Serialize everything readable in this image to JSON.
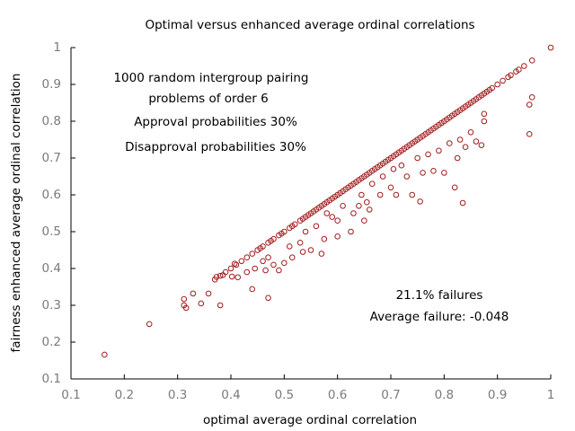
{
  "chart_data": {
    "type": "scatter",
    "title": "Optimal versus enhanced average ordinal correlations",
    "x_label": "optimal average ordinal correlation",
    "y_label": "fairness enhanced average ordinal correlation",
    "annotations": [
      "1000 random intergroup pairing",
      "problems of order 6",
      "Approval probabilities 30%",
      "Disapproval probabilities 30%",
      "21.1% failures",
      "Average failure: -0.048"
    ],
    "xlim": [
      0.1,
      1
    ],
    "ylim": [
      0.1,
      1
    ],
    "xticks": [
      0.1,
      0.2,
      0.3,
      0.4,
      0.5,
      0.6,
      0.7,
      0.8,
      0.9,
      1
    ],
    "yticks": [
      0.1,
      0.2,
      0.3,
      0.4,
      0.5,
      0.6,
      0.7,
      0.8,
      0.9,
      1
    ],
    "grid": false,
    "series": [
      {
        "color": "#a11d1d",
        "x": [
          0.37,
          0.38,
          0.39,
          0.4,
          0.41,
          0.42,
          0.43,
          0.44,
          0.45,
          0.455,
          0.46,
          0.47,
          0.475,
          0.48,
          0.49,
          0.495,
          0.5,
          0.51,
          0.515,
          0.52,
          0.53,
          0.535,
          0.54,
          0.545,
          0.55,
          0.555,
          0.56,
          0.565,
          0.57,
          0.575,
          0.58,
          0.585,
          0.59,
          0.595,
          0.6,
          0.605,
          0.61,
          0.615,
          0.62,
          0.625,
          0.63,
          0.635,
          0.64,
          0.645,
          0.65,
          0.655,
          0.66,
          0.665,
          0.67,
          0.675,
          0.68,
          0.685,
          0.69,
          0.695,
          0.7,
          0.705,
          0.71,
          0.715,
          0.72,
          0.725,
          0.73,
          0.735,
          0.74,
          0.745,
          0.75,
          0.755,
          0.76,
          0.765,
          0.77,
          0.775,
          0.78,
          0.785,
          0.79,
          0.795,
          0.8,
          0.805,
          0.81,
          0.815,
          0.82,
          0.825,
          0.83,
          0.835,
          0.84,
          0.845,
          0.85,
          0.855,
          0.86,
          0.865,
          0.87,
          0.875,
          0.88,
          0.885,
          0.89,
          0.9,
          0.91,
          0.92,
          0.925,
          0.935,
          0.94,
          0.95,
          0.965,
          1.0,
          0.163,
          0.247,
          0.312,
          0.329,
          0.312,
          0.316,
          0.344,
          0.358,
          0.373,
          0.38,
          0.385,
          0.402,
          0.413,
          0.407,
          0.44,
          0.47,
          0.43,
          0.445,
          0.46,
          0.465,
          0.47,
          0.48,
          0.49,
          0.5,
          0.515,
          0.51,
          0.53,
          0.535,
          0.54,
          0.55,
          0.56,
          0.57,
          0.575,
          0.58,
          0.59,
          0.6,
          0.6,
          0.61,
          0.625,
          0.63,
          0.64,
          0.645,
          0.65,
          0.655,
          0.66,
          0.665,
          0.68,
          0.685,
          0.7,
          0.705,
          0.71,
          0.72,
          0.73,
          0.74,
          0.75,
          0.755,
          0.76,
          0.77,
          0.78,
          0.79,
          0.8,
          0.81,
          0.82,
          0.825,
          0.83,
          0.835,
          0.84,
          0.85,
          0.87,
          0.875,
          0.875,
          0.96,
          0.96,
          0.965,
          0.86
        ],
        "y": [
          0.37,
          0.38,
          0.39,
          0.4,
          0.41,
          0.42,
          0.43,
          0.44,
          0.45,
          0.455,
          0.46,
          0.47,
          0.475,
          0.48,
          0.49,
          0.495,
          0.5,
          0.51,
          0.515,
          0.52,
          0.53,
          0.535,
          0.54,
          0.545,
          0.55,
          0.555,
          0.56,
          0.565,
          0.57,
          0.575,
          0.58,
          0.585,
          0.59,
          0.595,
          0.6,
          0.605,
          0.61,
          0.615,
          0.62,
          0.625,
          0.63,
          0.635,
          0.64,
          0.645,
          0.65,
          0.655,
          0.66,
          0.665,
          0.67,
          0.675,
          0.68,
          0.685,
          0.69,
          0.695,
          0.7,
          0.705,
          0.71,
          0.715,
          0.72,
          0.725,
          0.73,
          0.735,
          0.74,
          0.745,
          0.75,
          0.755,
          0.76,
          0.765,
          0.77,
          0.775,
          0.78,
          0.785,
          0.79,
          0.795,
          0.8,
          0.805,
          0.81,
          0.815,
          0.82,
          0.825,
          0.83,
          0.835,
          0.84,
          0.845,
          0.85,
          0.855,
          0.86,
          0.865,
          0.87,
          0.875,
          0.88,
          0.885,
          0.89,
          0.9,
          0.91,
          0.92,
          0.925,
          0.935,
          0.94,
          0.95,
          0.965,
          1.0,
          0.166,
          0.249,
          0.317,
          0.332,
          0.3,
          0.293,
          0.305,
          0.332,
          0.377,
          0.3,
          0.382,
          0.378,
          0.376,
          0.413,
          0.344,
          0.32,
          0.39,
          0.4,
          0.42,
          0.395,
          0.43,
          0.41,
          0.395,
          0.415,
          0.43,
          0.46,
          0.47,
          0.445,
          0.5,
          0.45,
          0.515,
          0.44,
          0.48,
          0.55,
          0.54,
          0.487,
          0.53,
          0.57,
          0.5,
          0.55,
          0.57,
          0.6,
          0.53,
          0.58,
          0.56,
          0.63,
          0.6,
          0.65,
          0.62,
          0.67,
          0.6,
          0.68,
          0.65,
          0.6,
          0.7,
          0.582,
          0.66,
          0.71,
          0.665,
          0.72,
          0.66,
          0.74,
          0.62,
          0.7,
          0.75,
          0.578,
          0.73,
          0.77,
          0.735,
          0.8,
          0.82,
          0.765,
          0.845,
          0.865,
          0.745
        ]
      }
    ]
  }
}
